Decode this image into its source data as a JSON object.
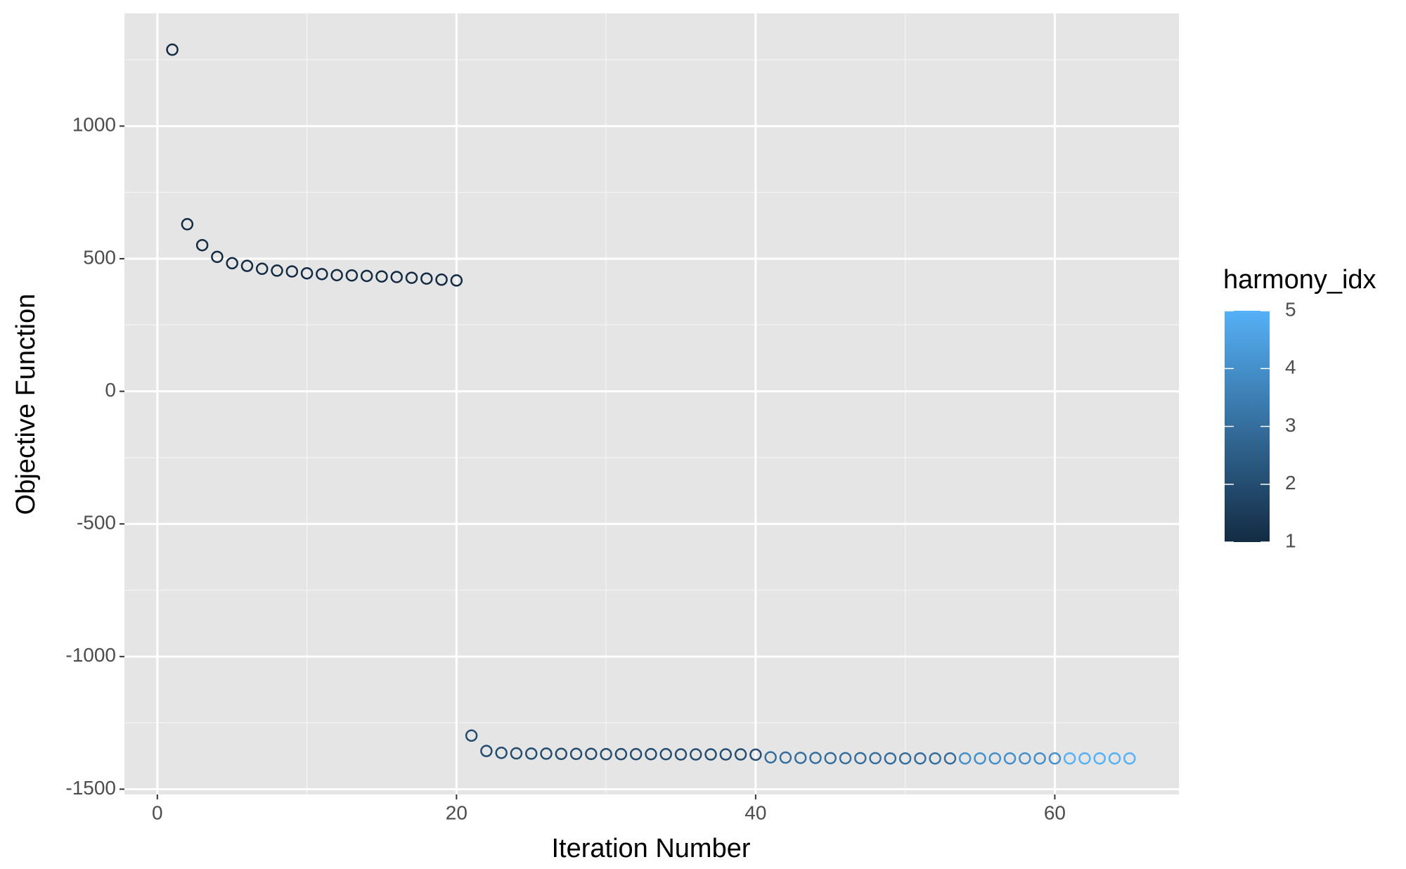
{
  "chart_data": {
    "type": "scatter",
    "x_label": "Iteration Number",
    "y_label": "Objective Function",
    "x": [
      1,
      2,
      3,
      4,
      5,
      6,
      7,
      8,
      9,
      10,
      11,
      12,
      13,
      14,
      15,
      16,
      17,
      18,
      19,
      20,
      21,
      22,
      23,
      24,
      25,
      26,
      27,
      28,
      29,
      30,
      31,
      32,
      33,
      34,
      35,
      36,
      37,
      38,
      39,
      40,
      41,
      42,
      43,
      44,
      45,
      46,
      47,
      48,
      49,
      50,
      51,
      52,
      53,
      54,
      55,
      56,
      57,
      58,
      59,
      60,
      61,
      62,
      63,
      64,
      65
    ],
    "values": [
      1288,
      630,
      551,
      507,
      483,
      473,
      462,
      455,
      452,
      445,
      442,
      438,
      437,
      435,
      433,
      431,
      428,
      425,
      421,
      418,
      -1298,
      -1356,
      -1363,
      -1365,
      -1366,
      -1366,
      -1367,
      -1367,
      -1367,
      -1368,
      -1368,
      -1368,
      -1368,
      -1368,
      -1369,
      -1369,
      -1369,
      -1369,
      -1369,
      -1370,
      -1380,
      -1381,
      -1382,
      -1382,
      -1383,
      -1383,
      -1383,
      -1383,
      -1384,
      -1384,
      -1384,
      -1384,
      -1384,
      -1384,
      -1384,
      -1384,
      -1384,
      -1384,
      -1384,
      -1384,
      -1384,
      -1384,
      -1384,
      -1384,
      -1384
    ],
    "color_values": [
      1,
      1,
      1,
      1,
      1,
      1,
      1,
      1,
      1,
      1,
      1,
      1,
      1,
      1,
      1,
      1,
      1,
      1,
      1,
      1,
      2,
      2,
      2,
      2,
      2,
      2,
      2,
      2,
      2,
      2,
      2,
      2,
      2,
      2,
      2,
      2,
      2,
      2,
      2,
      2,
      3,
      3,
      3,
      3,
      3,
      3,
      3,
      3,
      3,
      3,
      3,
      3,
      3,
      4,
      4,
      4,
      4,
      4,
      4,
      4,
      5,
      5,
      5,
      5,
      5
    ],
    "xlim": [
      -2.2,
      68.3
    ],
    "ylim": [
      -1520,
      1425
    ],
    "xticks": [
      0,
      20,
      40,
      60
    ],
    "yticks": [
      -1500,
      -1000,
      -500,
      0,
      500,
      1000
    ],
    "xminor_ticks": [
      10,
      30,
      50
    ],
    "yminor_ticks": [
      -1250,
      -750,
      -250,
      250,
      750,
      1250
    ],
    "grid": true,
    "legend": {
      "title": "harmony_idx",
      "position": "right",
      "low_color": "#132B43",
      "high_color": "#56B1F7",
      "lim": [
        1,
        5
      ],
      "ticks": [
        1,
        2,
        3,
        4,
        5
      ]
    }
  }
}
